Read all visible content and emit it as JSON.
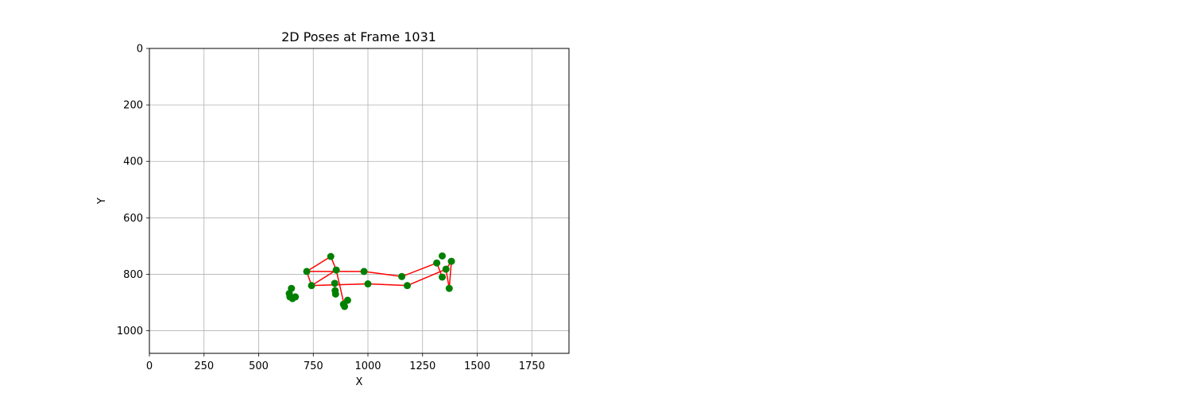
{
  "chart_data": {
    "type": "scatter",
    "title": "2D Poses at Frame 1031",
    "xlabel": "X",
    "ylabel": "Y",
    "xlim": [
      0,
      1920
    ],
    "ylim": [
      1080,
      0
    ],
    "y_inverted": true,
    "grid": true,
    "xticks": [
      0,
      250,
      500,
      750,
      1000,
      1250,
      1500,
      1750
    ],
    "yticks": [
      0,
      200,
      400,
      600,
      800,
      1000
    ],
    "point_color": "#008000",
    "line_color": "#ff0000",
    "points": [
      [
        830,
        737
      ],
      [
        720,
        790
      ],
      [
        742,
        840
      ],
      [
        855,
        785
      ],
      [
        982,
        790
      ],
      [
        848,
        832
      ],
      [
        1000,
        834
      ],
      [
        1155,
        808
      ],
      [
        1180,
        840
      ],
      [
        1315,
        760
      ],
      [
        1340,
        735
      ],
      [
        1382,
        754
      ],
      [
        1357,
        782
      ],
      [
        1340,
        810
      ],
      [
        1372,
        850
      ],
      [
        850,
        858
      ],
      [
        852,
        870
      ],
      [
        888,
        906
      ],
      [
        893,
        914
      ],
      [
        907,
        892
      ],
      [
        650,
        850
      ],
      [
        640,
        868
      ],
      [
        643,
        880
      ],
      [
        655,
        886
      ],
      [
        668,
        880
      ]
    ],
    "segments": [
      [
        [
          720,
          790
        ],
        [
          830,
          737
        ]
      ],
      [
        [
          830,
          737
        ],
        [
          855,
          785
        ]
      ],
      [
        [
          720,
          790
        ],
        [
          982,
          790
        ]
      ],
      [
        [
          982,
          790
        ],
        [
          1155,
          808
        ]
      ],
      [
        [
          1155,
          808
        ],
        [
          1315,
          760
        ]
      ],
      [
        [
          1315,
          760
        ],
        [
          1340,
          810
        ]
      ],
      [
        [
          742,
          840
        ],
        [
          720,
          790
        ]
      ],
      [
        [
          742,
          840
        ],
        [
          855,
          785
        ]
      ],
      [
        [
          742,
          840
        ],
        [
          1000,
          834
        ]
      ],
      [
        [
          1000,
          834
        ],
        [
          1180,
          840
        ]
      ],
      [
        [
          1180,
          840
        ],
        [
          1357,
          782
        ]
      ],
      [
        [
          1357,
          782
        ],
        [
          1372,
          850
        ]
      ],
      [
        [
          1372,
          850
        ],
        [
          1382,
          754
        ]
      ],
      [
        [
          1382,
          754
        ],
        [
          1357,
          782
        ]
      ],
      [
        [
          855,
          785
        ],
        [
          893,
          914
        ]
      ],
      [
        [
          848,
          832
        ],
        [
          850,
          858
        ]
      ],
      [
        [
          655,
          886
        ],
        [
          650,
          850
        ]
      ],
      [
        [
          640,
          868
        ],
        [
          668,
          880
        ]
      ]
    ]
  }
}
